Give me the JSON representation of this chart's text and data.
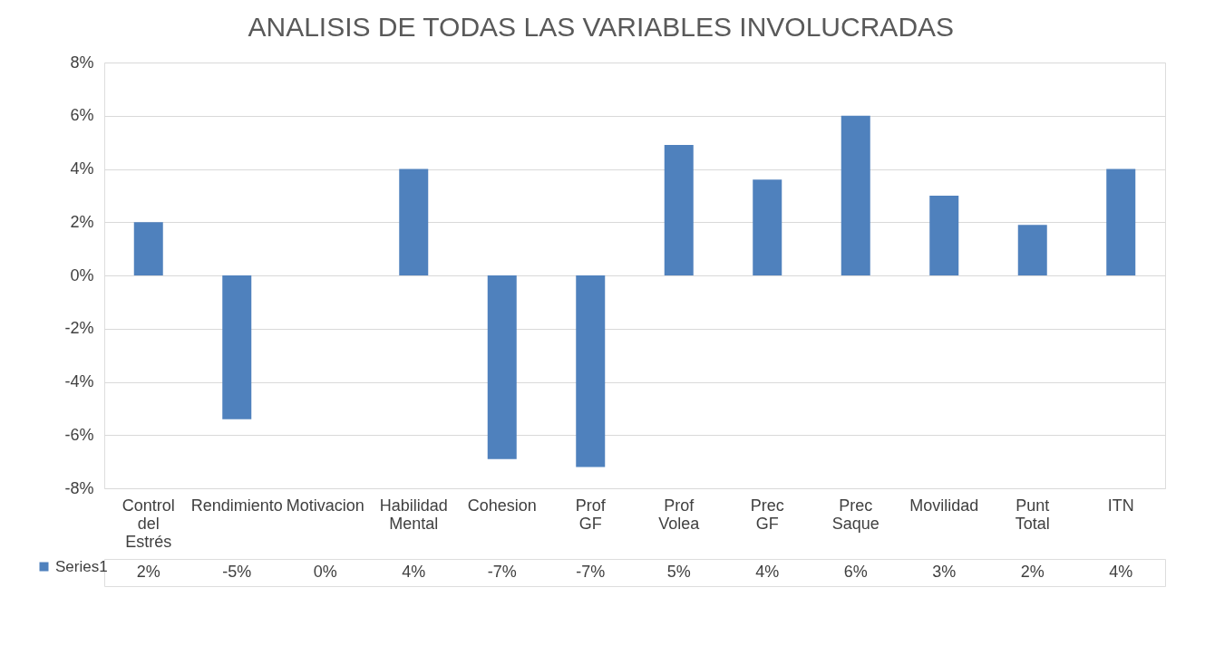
{
  "chart_data": {
    "type": "bar",
    "title": "ANALISIS DE TODAS LAS VARIABLES INVOLUCRADAS",
    "categories": [
      "Control del Estrés",
      "Rendimiento",
      "Motivacion",
      "Habilidad Mental",
      "Cohesion",
      "Prof GF",
      "Prof Volea",
      "Prec GF",
      "Prec Saque",
      "Movilidad",
      "Punt Total",
      "ITN"
    ],
    "series": [
      {
        "name": "Series1",
        "color": "#4f81bd",
        "values": [
          2.0,
          -5.4,
          0,
          4.0,
          -6.9,
          -7.2,
          4.9,
          3.6,
          6.0,
          3.0,
          1.9,
          4.0
        ],
        "value_labels": [
          "2%",
          "-5%",
          "0%",
          "4%",
          "-7%",
          "-7%",
          "5%",
          "4%",
          "6%",
          "3%",
          "2%",
          "4%"
        ]
      }
    ],
    "ylim": [
      -8,
      8
    ],
    "yticks": [
      {
        "value": -8,
        "label": "-8%"
      },
      {
        "value": -6,
        "label": "-6%"
      },
      {
        "value": -4,
        "label": "-4%"
      },
      {
        "value": -2,
        "label": "-2%"
      },
      {
        "value": 0,
        "label": "0%"
      },
      {
        "value": 2,
        "label": "2%"
      },
      {
        "value": 4,
        "label": "4%"
      },
      {
        "value": 6,
        "label": "6%"
      },
      {
        "value": 8,
        "label": "8%"
      }
    ],
    "grid": "y",
    "legend": "bottom left"
  }
}
